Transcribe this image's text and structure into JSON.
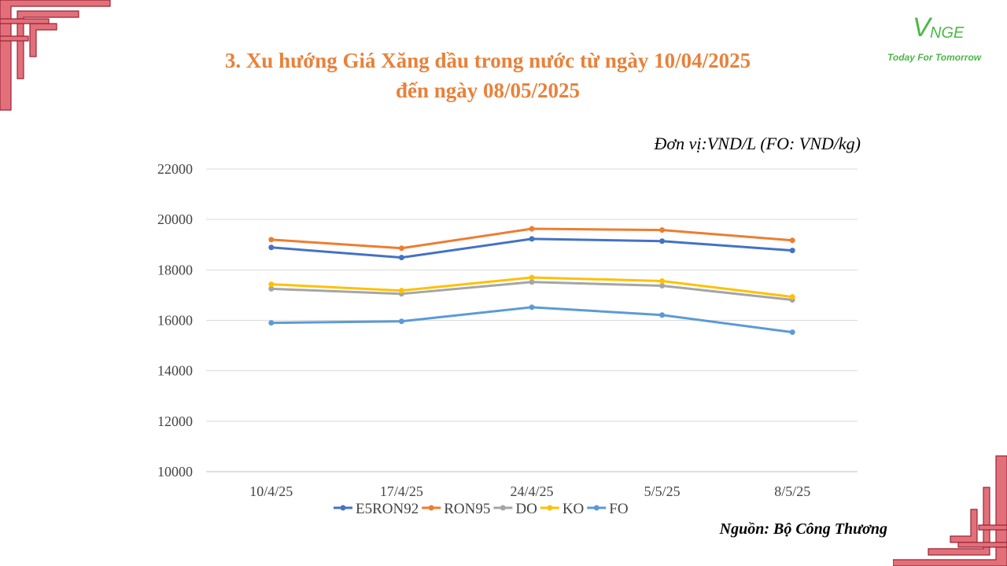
{
  "title": {
    "line1": "3. Xu hướng Giá Xăng dầu trong nước từ ngày 10/04/2025",
    "line2": "đến ngày 08/05/2025"
  },
  "logo": {
    "v": "V",
    "nge": "NGE",
    "tagline": "Today For Tomorrow",
    "color": "#4CB748"
  },
  "unit_label": "Đơn vị:VND/L (FO: VND/kg)",
  "source_label": "Nguồn: Bộ Công Thương",
  "colors": {
    "title": "#E8813A",
    "decor": "#E2707A"
  },
  "chart_data": {
    "type": "line",
    "categories": [
      "10/4/25",
      "17/4/25",
      "24/4/25",
      "5/5/25",
      "8/5/25"
    ],
    "ylim": [
      10000,
      22000
    ],
    "yticks": [
      10000,
      12000,
      14000,
      16000,
      18000,
      20000,
      22000
    ],
    "grid": true,
    "legend_position": "bottom",
    "series": [
      {
        "name": "E5RON92",
        "color": "#4472C4",
        "values": [
          18890,
          18490,
          19230,
          19140,
          18770
        ]
      },
      {
        "name": "RON95",
        "color": "#ED7D31",
        "values": [
          19200,
          18860,
          19630,
          19580,
          19170
        ]
      },
      {
        "name": "DO",
        "color": "#A5A5A5",
        "values": [
          17250,
          17050,
          17520,
          17370,
          16810
        ]
      },
      {
        "name": "KO",
        "color": "#FFC000",
        "values": [
          17430,
          17180,
          17700,
          17560,
          16930
        ]
      },
      {
        "name": "FO",
        "color": "#5B9BD5",
        "values": [
          15900,
          15960,
          16520,
          16210,
          15530
        ]
      }
    ]
  }
}
